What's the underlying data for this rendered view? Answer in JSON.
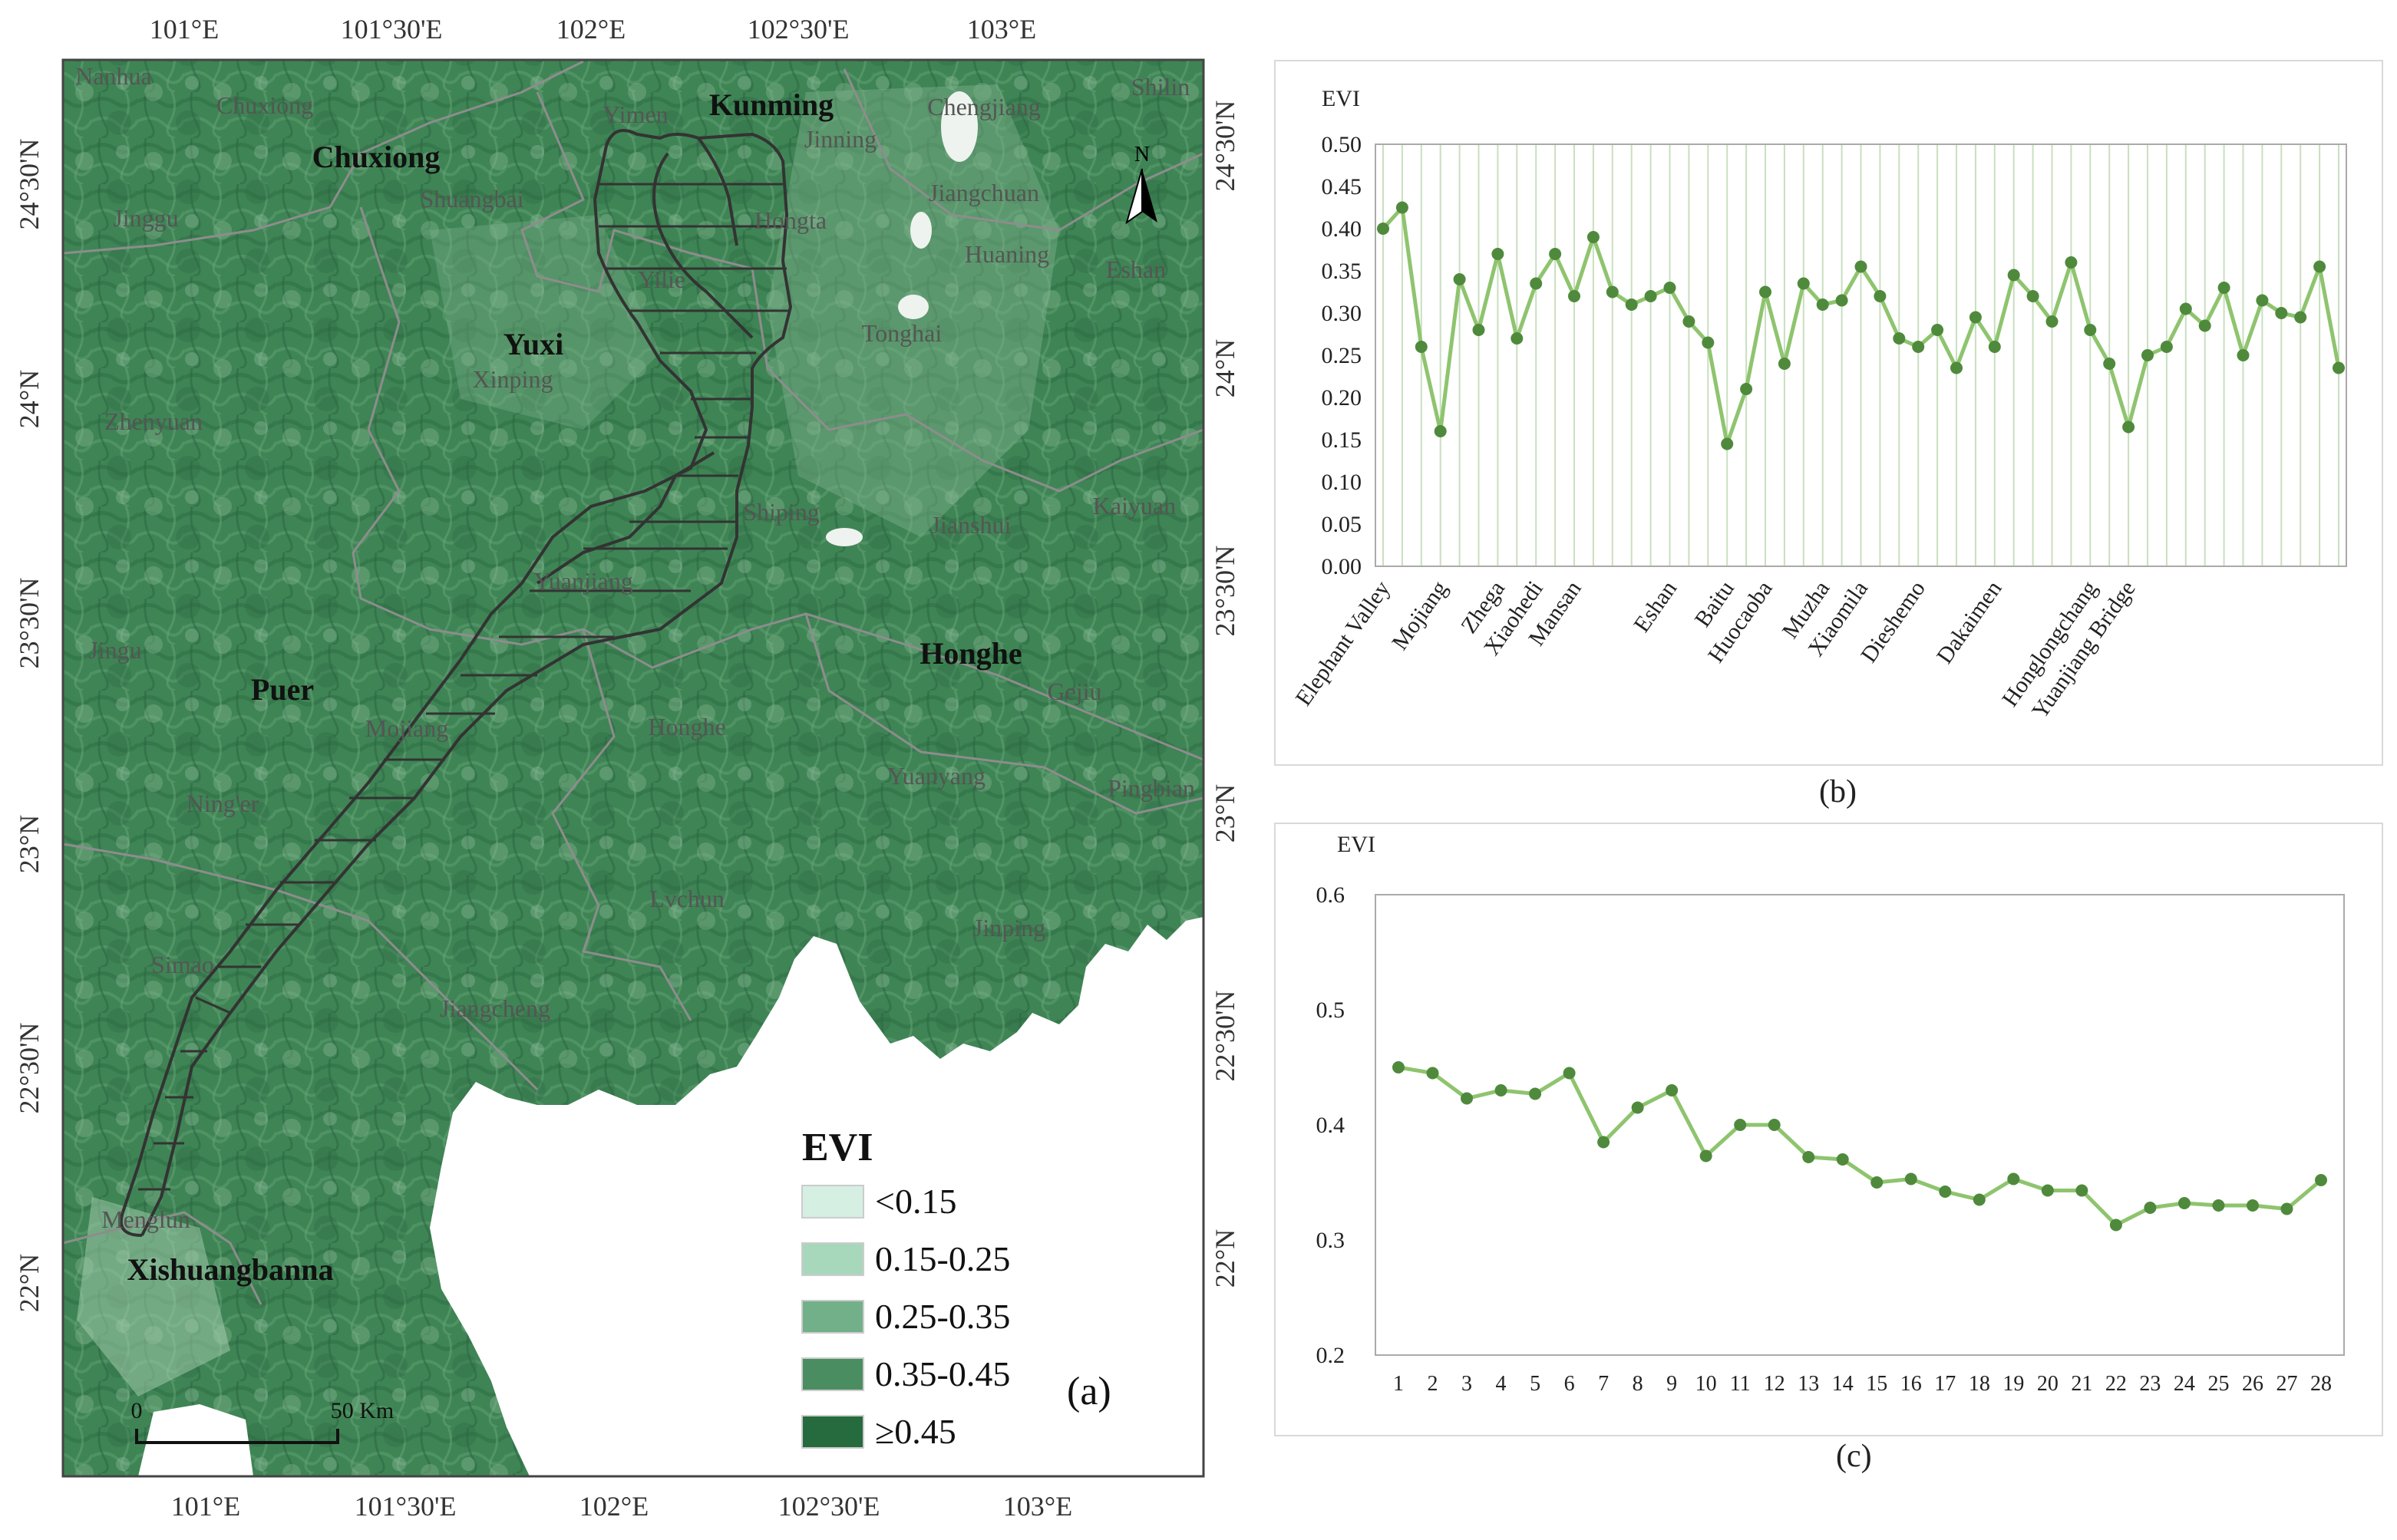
{
  "map": {
    "panel_label": "(a)",
    "top_lon_labels": [
      "101°E",
      "101°30'E",
      "102°E",
      "102°30'E",
      "103°E"
    ],
    "bottom_lon_labels": [
      "101°E",
      "101°30'E",
      "102°E",
      "102°30'E",
      "103°E"
    ],
    "left_lat_labels": [
      "24°30'N",
      "24°N",
      "23°30'N",
      "23°N",
      "22°30'N",
      "22°N"
    ],
    "right_lat_labels": [
      "24°30'N",
      "24°N",
      "23°30'N",
      "23°N",
      "22°30'N",
      "22°N"
    ],
    "north_label": "N",
    "scale": {
      "start": "0",
      "end": "50 Km"
    },
    "legend": {
      "title": "EVI",
      "items": [
        {
          "label": "<0.15",
          "color": "#d5efe3"
        },
        {
          "label": "0.15-0.25",
          "color": "#a8d8bb"
        },
        {
          "label": "0.25-0.35",
          "color": "#72b08a"
        },
        {
          "label": "0.35-0.45",
          "color": "#4a8d61"
        },
        {
          "label": "≥0.45",
          "color": "#256b3e"
        }
      ]
    },
    "regions_bold": [
      "Kunming",
      "Chuxiong",
      "Yuxi",
      "Honghe",
      "Puer",
      "Xishuangbanna"
    ],
    "places_gray": [
      "Nanhua",
      "Chuxiong",
      "Yimen",
      "Jinning",
      "Chengjiang",
      "Shilin",
      "Shuangbai",
      "Jinggu",
      "Hongta",
      "Jiangchuan",
      "Huaning",
      "Eshan",
      "Yilie",
      "Tonghai",
      "Xinping",
      "Zhenyuan",
      "Shiping",
      "Jianshui",
      "Kaiyuan",
      "Yuanjiang",
      "Jingu",
      "Gejiu",
      "Mojiang",
      "Honghe",
      "Ning'er",
      "Yuanyang",
      "Pingbian",
      "Lvchun",
      "Jinping",
      "Simao",
      "Jiangcheng",
      "Menglun"
    ],
    "colors": {
      "green": "#3f8455",
      "route": "#333333",
      "border": "#8a8a8a"
    }
  },
  "chart_data": [
    {
      "type": "line",
      "panel_label": "(b)",
      "ylabel": "EVI",
      "ylim": [
        0,
        0.5
      ],
      "yticks": [
        "0.00",
        "0.05",
        "0.10",
        "0.15",
        "0.20",
        "0.25",
        "0.30",
        "0.35",
        "0.40",
        "0.45",
        "0.50"
      ],
      "x_labels": [
        "Elephant Valley",
        "Mojiang",
        "Zhega",
        "Xiaohedi",
        "Mansan",
        "Eshan",
        "Baitu",
        "Huocaoba",
        "Muzha",
        "Xiaomila",
        "Dieshemo",
        "Dakaimen",
        "Honglongchang",
        "Yuanjiang Bridge"
      ],
      "x_label_positions": [
        1,
        4,
        7,
        9,
        11,
        16,
        19,
        21,
        24,
        26,
        29,
        33,
        38,
        40
      ],
      "values": [
        0.4,
        0.425,
        0.26,
        0.16,
        0.34,
        0.28,
        0.37,
        0.27,
        0.335,
        0.37,
        0.32,
        0.39,
        0.325,
        0.31,
        0.32,
        0.33,
        0.29,
        0.265,
        0.145,
        0.21,
        0.325,
        0.24,
        0.335,
        0.31,
        0.315,
        0.355,
        0.32,
        0.27,
        0.26,
        0.28,
        0.235,
        0.295,
        0.26,
        0.345,
        0.32,
        0.29,
        0.36,
        0.28,
        0.24,
        0.165,
        0.25,
        0.26,
        0.305,
        0.285,
        0.33,
        0.25,
        0.315,
        0.3,
        0.295,
        0.355,
        0.235
      ],
      "colors": {
        "line": "#8ec46e",
        "marker": "#4f8a3c",
        "grid": "#c9dfbf"
      }
    },
    {
      "type": "line",
      "panel_label": "(c)",
      "ylabel": "EVI",
      "ylim": [
        0.2,
        0.6
      ],
      "yticks": [
        "0.2",
        "0.3",
        "0.4",
        "0.5",
        "0.6"
      ],
      "x": [
        1,
        2,
        3,
        4,
        5,
        6,
        7,
        8,
        9,
        10,
        11,
        12,
        13,
        14,
        15,
        16,
        17,
        18,
        19,
        20,
        21,
        22,
        23,
        24,
        25,
        26,
        27,
        28
      ],
      "values": [
        0.45,
        0.445,
        0.423,
        0.43,
        0.427,
        0.445,
        0.385,
        0.415,
        0.43,
        0.373,
        0.4,
        0.4,
        0.372,
        0.37,
        0.35,
        0.353,
        0.342,
        0.335,
        0.353,
        0.343,
        0.343,
        0.313,
        0.328,
        0.332,
        0.33,
        0.33,
        0.327,
        0.352
      ],
      "colors": {
        "line": "#8ec46e",
        "marker": "#4f8a3c"
      }
    }
  ]
}
